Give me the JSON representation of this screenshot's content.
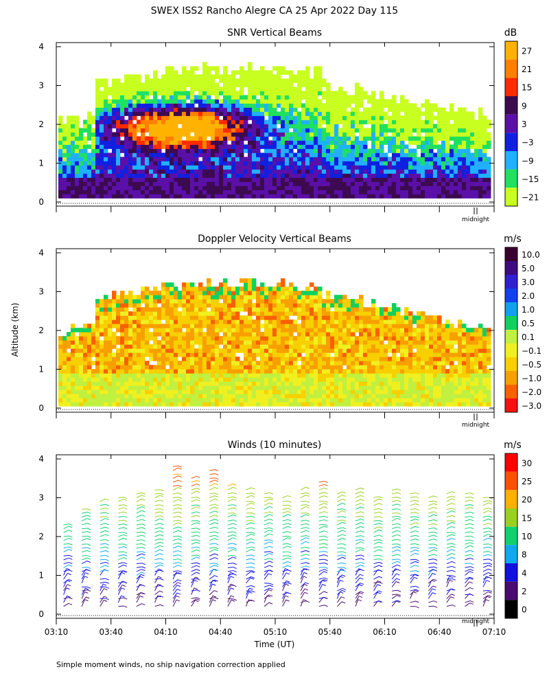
{
  "figure": {
    "title": "SWEX ISS2 Rancho Alegre CA  25 Apr 2022 Day 115",
    "ylabel": "Altitude (km)",
    "xlabel": "Time (UT)",
    "footnote": "Simple moment winds, no ship navigation correction applied",
    "midnight_label": "midnight",
    "x_tick_labels": [
      "03:10",
      "03:40",
      "04:10",
      "04:40",
      "05:10",
      "05:40",
      "06:10",
      "06:40",
      "07:10"
    ],
    "y_tick_labels": [
      "0",
      "1",
      "2",
      "3",
      "4"
    ]
  },
  "chart_data": [
    {
      "type": "heatmap",
      "title": "SNR Vertical Beams",
      "units": "dB",
      "x_range": [
        "03:10",
        "07:10"
      ],
      "y_range_km": [
        0,
        4
      ],
      "colorbar": {
        "labels": [
          "27",
          "21",
          "15",
          "9",
          "3",
          "−3",
          "−9",
          "−15",
          "−21"
        ],
        "colors": [
          "#ffb300",
          "#ff8000",
          "#ff2a00",
          "#3d0a50",
          "#5a10a8",
          "#1020e0",
          "#20b0ff",
          "#20e060",
          "#c8ff20"
        ]
      },
      "summary": {
        "low_snr_top_km": 3.0,
        "high_snr_core_km": [
          1.2,
          2.6
        ],
        "high_snr_core_time": [
          "03:30",
          "04:50"
        ]
      }
    },
    {
      "type": "heatmap",
      "title": "Doppler Velocity Vertical Beams",
      "units": "m/s",
      "x_range": [
        "03:10",
        "07:10"
      ],
      "y_range_km": [
        0,
        4
      ],
      "colorbar": {
        "labels": [
          "10.0",
          "5.0",
          "3.0",
          "2.0",
          "1.0",
          "0.5",
          "0.1",
          "−0.1",
          "−0.5",
          "−1.0",
          "−2.0",
          "−3.0"
        ],
        "colors": [
          "#3a0030",
          "#3d0a80",
          "#3020d0",
          "#1040f0",
          "#10a0f0",
          "#10d060",
          "#c0f040",
          "#f0f020",
          "#f8d000",
          "#f8a000",
          "#f86000",
          "#f81010"
        ]
      }
    },
    {
      "type": "scatter",
      "title": "Winds (10 minutes)",
      "units": "m/s",
      "x_range": [
        "03:10",
        "07:10"
      ],
      "y_range_km": [
        0,
        4
      ],
      "colorbar": {
        "labels": [
          "30",
          "25",
          "20",
          "15",
          "10",
          "8",
          "4",
          "2",
          "0"
        ],
        "colors": [
          "#ff0000",
          "#ff5000",
          "#ffb000",
          "#9ad020",
          "#10d070",
          "#10a8f0",
          "#1010e0",
          "#4a0a70",
          "#000000"
        ]
      },
      "profiles_times": [
        "03:14",
        "03:24",
        "03:34",
        "03:44",
        "03:54",
        "04:04",
        "04:14",
        "04:24",
        "04:34",
        "04:44",
        "04:54",
        "05:04",
        "05:14",
        "05:24",
        "05:34",
        "05:44",
        "05:54",
        "06:04",
        "06:14",
        "06:24",
        "06:34",
        "06:44",
        "06:54",
        "07:04"
      ],
      "profiles_top_km": [
        2.4,
        2.8,
        3.0,
        3.1,
        3.2,
        3.3,
        3.9,
        3.6,
        3.8,
        3.4,
        3.3,
        3.2,
        3.1,
        3.3,
        3.5,
        3.2,
        3.3,
        3.1,
        3.3,
        3.2,
        3.1,
        3.2,
        3.2,
        3.1
      ]
    }
  ]
}
